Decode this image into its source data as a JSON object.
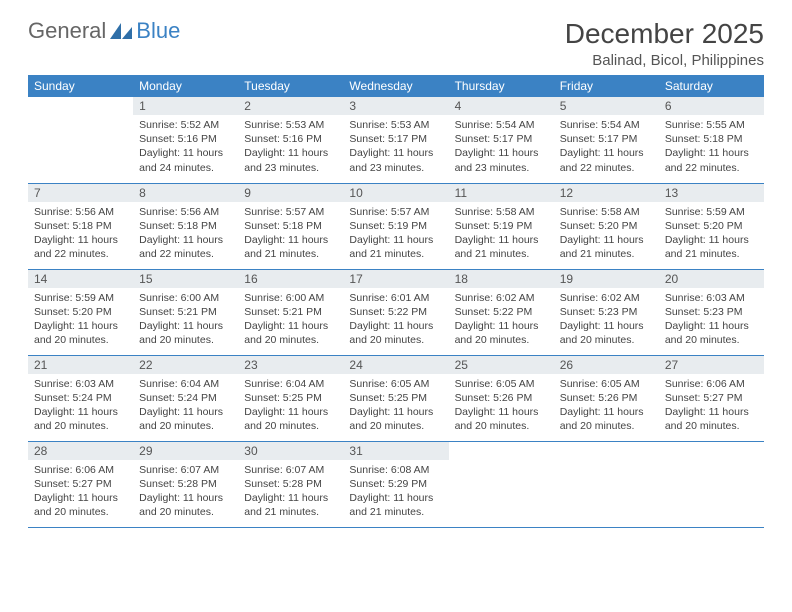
{
  "brand": {
    "part1": "General",
    "part2": "Blue"
  },
  "colors": {
    "header_bg": "#3b82c4",
    "header_text": "#ffffff",
    "daynum_bg": "#e8ecef",
    "border": "#3b82c4",
    "text": "#444444",
    "background": "#ffffff"
  },
  "typography": {
    "title_fontsize": 28,
    "location_fontsize": 15,
    "dayheader_fontsize": 12,
    "daynum_fontsize": 12,
    "body_fontsize": 10.5
  },
  "title": "December 2025",
  "location": "Balinad, Bicol, Philippines",
  "day_headers": [
    "Sunday",
    "Monday",
    "Tuesday",
    "Wednesday",
    "Thursday",
    "Friday",
    "Saturday"
  ],
  "weeks": [
    [
      null,
      {
        "n": "1",
        "sr": "Sunrise: 5:52 AM",
        "ss": "Sunset: 5:16 PM",
        "d1": "Daylight: 11 hours",
        "d2": "and 24 minutes."
      },
      {
        "n": "2",
        "sr": "Sunrise: 5:53 AM",
        "ss": "Sunset: 5:16 PM",
        "d1": "Daylight: 11 hours",
        "d2": "and 23 minutes."
      },
      {
        "n": "3",
        "sr": "Sunrise: 5:53 AM",
        "ss": "Sunset: 5:17 PM",
        "d1": "Daylight: 11 hours",
        "d2": "and 23 minutes."
      },
      {
        "n": "4",
        "sr": "Sunrise: 5:54 AM",
        "ss": "Sunset: 5:17 PM",
        "d1": "Daylight: 11 hours",
        "d2": "and 23 minutes."
      },
      {
        "n": "5",
        "sr": "Sunrise: 5:54 AM",
        "ss": "Sunset: 5:17 PM",
        "d1": "Daylight: 11 hours",
        "d2": "and 22 minutes."
      },
      {
        "n": "6",
        "sr": "Sunrise: 5:55 AM",
        "ss": "Sunset: 5:18 PM",
        "d1": "Daylight: 11 hours",
        "d2": "and 22 minutes."
      }
    ],
    [
      {
        "n": "7",
        "sr": "Sunrise: 5:56 AM",
        "ss": "Sunset: 5:18 PM",
        "d1": "Daylight: 11 hours",
        "d2": "and 22 minutes."
      },
      {
        "n": "8",
        "sr": "Sunrise: 5:56 AM",
        "ss": "Sunset: 5:18 PM",
        "d1": "Daylight: 11 hours",
        "d2": "and 22 minutes."
      },
      {
        "n": "9",
        "sr": "Sunrise: 5:57 AM",
        "ss": "Sunset: 5:18 PM",
        "d1": "Daylight: 11 hours",
        "d2": "and 21 minutes."
      },
      {
        "n": "10",
        "sr": "Sunrise: 5:57 AM",
        "ss": "Sunset: 5:19 PM",
        "d1": "Daylight: 11 hours",
        "d2": "and 21 minutes."
      },
      {
        "n": "11",
        "sr": "Sunrise: 5:58 AM",
        "ss": "Sunset: 5:19 PM",
        "d1": "Daylight: 11 hours",
        "d2": "and 21 minutes."
      },
      {
        "n": "12",
        "sr": "Sunrise: 5:58 AM",
        "ss": "Sunset: 5:20 PM",
        "d1": "Daylight: 11 hours",
        "d2": "and 21 minutes."
      },
      {
        "n": "13",
        "sr": "Sunrise: 5:59 AM",
        "ss": "Sunset: 5:20 PM",
        "d1": "Daylight: 11 hours",
        "d2": "and 21 minutes."
      }
    ],
    [
      {
        "n": "14",
        "sr": "Sunrise: 5:59 AM",
        "ss": "Sunset: 5:20 PM",
        "d1": "Daylight: 11 hours",
        "d2": "and 20 minutes."
      },
      {
        "n": "15",
        "sr": "Sunrise: 6:00 AM",
        "ss": "Sunset: 5:21 PM",
        "d1": "Daylight: 11 hours",
        "d2": "and 20 minutes."
      },
      {
        "n": "16",
        "sr": "Sunrise: 6:00 AM",
        "ss": "Sunset: 5:21 PM",
        "d1": "Daylight: 11 hours",
        "d2": "and 20 minutes."
      },
      {
        "n": "17",
        "sr": "Sunrise: 6:01 AM",
        "ss": "Sunset: 5:22 PM",
        "d1": "Daylight: 11 hours",
        "d2": "and 20 minutes."
      },
      {
        "n": "18",
        "sr": "Sunrise: 6:02 AM",
        "ss": "Sunset: 5:22 PM",
        "d1": "Daylight: 11 hours",
        "d2": "and 20 minutes."
      },
      {
        "n": "19",
        "sr": "Sunrise: 6:02 AM",
        "ss": "Sunset: 5:23 PM",
        "d1": "Daylight: 11 hours",
        "d2": "and 20 minutes."
      },
      {
        "n": "20",
        "sr": "Sunrise: 6:03 AM",
        "ss": "Sunset: 5:23 PM",
        "d1": "Daylight: 11 hours",
        "d2": "and 20 minutes."
      }
    ],
    [
      {
        "n": "21",
        "sr": "Sunrise: 6:03 AM",
        "ss": "Sunset: 5:24 PM",
        "d1": "Daylight: 11 hours",
        "d2": "and 20 minutes."
      },
      {
        "n": "22",
        "sr": "Sunrise: 6:04 AM",
        "ss": "Sunset: 5:24 PM",
        "d1": "Daylight: 11 hours",
        "d2": "and 20 minutes."
      },
      {
        "n": "23",
        "sr": "Sunrise: 6:04 AM",
        "ss": "Sunset: 5:25 PM",
        "d1": "Daylight: 11 hours",
        "d2": "and 20 minutes."
      },
      {
        "n": "24",
        "sr": "Sunrise: 6:05 AM",
        "ss": "Sunset: 5:25 PM",
        "d1": "Daylight: 11 hours",
        "d2": "and 20 minutes."
      },
      {
        "n": "25",
        "sr": "Sunrise: 6:05 AM",
        "ss": "Sunset: 5:26 PM",
        "d1": "Daylight: 11 hours",
        "d2": "and 20 minutes."
      },
      {
        "n": "26",
        "sr": "Sunrise: 6:05 AM",
        "ss": "Sunset: 5:26 PM",
        "d1": "Daylight: 11 hours",
        "d2": "and 20 minutes."
      },
      {
        "n": "27",
        "sr": "Sunrise: 6:06 AM",
        "ss": "Sunset: 5:27 PM",
        "d1": "Daylight: 11 hours",
        "d2": "and 20 minutes."
      }
    ],
    [
      {
        "n": "28",
        "sr": "Sunrise: 6:06 AM",
        "ss": "Sunset: 5:27 PM",
        "d1": "Daylight: 11 hours",
        "d2": "and 20 minutes."
      },
      {
        "n": "29",
        "sr": "Sunrise: 6:07 AM",
        "ss": "Sunset: 5:28 PM",
        "d1": "Daylight: 11 hours",
        "d2": "and 20 minutes."
      },
      {
        "n": "30",
        "sr": "Sunrise: 6:07 AM",
        "ss": "Sunset: 5:28 PM",
        "d1": "Daylight: 11 hours",
        "d2": "and 21 minutes."
      },
      {
        "n": "31",
        "sr": "Sunrise: 6:08 AM",
        "ss": "Sunset: 5:29 PM",
        "d1": "Daylight: 11 hours",
        "d2": "and 21 minutes."
      },
      null,
      null,
      null
    ]
  ]
}
